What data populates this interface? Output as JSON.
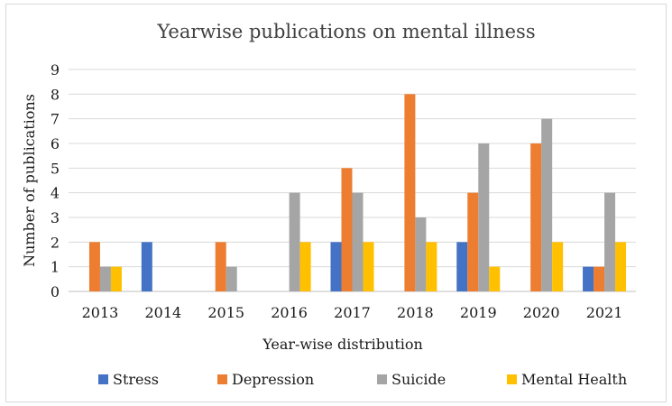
{
  "chart_data": {
    "type": "bar",
    "title": "Yearwise publications on mental illness",
    "xlabel": "Year-wise distribution",
    "ylabel": "Number of publications",
    "categories": [
      "2013",
      "2014",
      "2015",
      "2016",
      "2017",
      "2018",
      "2019",
      "2020",
      "2021"
    ],
    "ylim": [
      0,
      9
    ],
    "yticks": [
      0,
      1,
      2,
      3,
      4,
      5,
      6,
      7,
      8,
      9
    ],
    "grid": true,
    "legend_position": "bottom",
    "series": [
      {
        "name": "Stress",
        "color": "#4472c4",
        "values": [
          0,
          2,
          0,
          0,
          2,
          0,
          2,
          0,
          1
        ]
      },
      {
        "name": "Depression",
        "color": "#ed7d31",
        "values": [
          2,
          0,
          2,
          0,
          5,
          8,
          4,
          6,
          1
        ]
      },
      {
        "name": "Suicide",
        "color": "#a5a5a5",
        "values": [
          1,
          0,
          1,
          4,
          4,
          3,
          6,
          7,
          4
        ]
      },
      {
        "name": "Mental Health",
        "color": "#ffc000",
        "values": [
          1,
          0,
          0,
          2,
          2,
          2,
          1,
          2,
          2
        ]
      }
    ]
  }
}
